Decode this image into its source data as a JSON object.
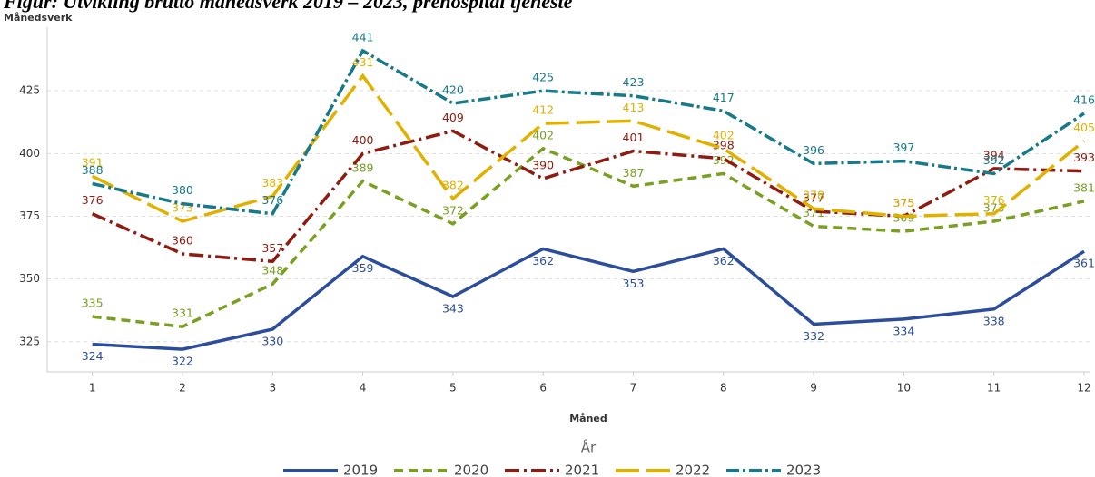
{
  "chart_data": {
    "type": "line",
    "title": "Figur: Utvikling brutto månedsverk 2019 – 2023, prehospital tjeneste",
    "y_label": "Månedsverk",
    "x_label": "Måned",
    "legend_title": "År",
    "x": [
      1,
      2,
      3,
      4,
      5,
      6,
      7,
      8,
      9,
      10,
      11,
      12
    ],
    "xlim": [
      0.5,
      12
    ],
    "xticks": [
      1,
      2,
      3,
      4,
      5,
      6,
      7,
      8,
      9,
      10,
      11,
      12
    ],
    "ylim": [
      313,
      450
    ],
    "yticks": [
      325,
      350,
      375,
      400,
      425
    ],
    "grid": true,
    "legend": "bottom",
    "series": [
      {
        "name": "2019",
        "color": "#2b4d9c",
        "values": [
          324,
          322,
          330,
          359,
          343,
          362,
          353,
          362,
          332,
          334,
          338,
          361
        ]
      },
      {
        "name": "2020",
        "color": "#79a020",
        "values": [
          335,
          331,
          348,
          389,
          372,
          402,
          387,
          392,
          371,
          369,
          373,
          381
        ]
      },
      {
        "name": "2021",
        "color": "#8e1c10",
        "values": [
          376,
          360,
          357,
          400,
          409,
          390,
          401,
          398,
          377,
          375,
          394,
          393
        ]
      },
      {
        "name": "2022",
        "color": "#e1b100",
        "values": [
          391,
          373,
          383,
          431,
          382,
          412,
          413,
          402,
          378,
          375,
          376,
          405
        ]
      },
      {
        "name": "2023",
        "color": "#17798a",
        "values": [
          388,
          380,
          376,
          441,
          420,
          425,
          423,
          417,
          396,
          397,
          392,
          416
        ]
      }
    ]
  }
}
